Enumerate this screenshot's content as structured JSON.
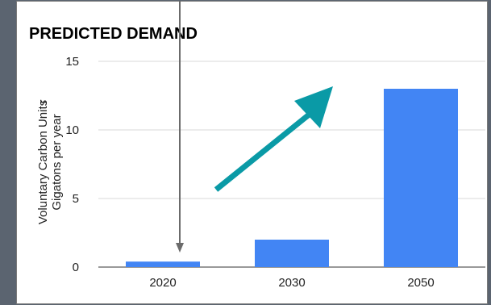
{
  "colors": {
    "bar": "#4285f4",
    "trend_arrow": "#0a9aa6",
    "pointer_arrow": "#6b6b6b",
    "grid": "#d9d9d9",
    "frame": "#7a7a7a"
  },
  "chart_data": {
    "type": "bar",
    "title": "PREDICTED DEMAND",
    "xlabel": "",
    "ylabel_line1": "Voluntary Carbon Units",
    "ylabel_line2": "Gigatons per year",
    "ylabel_fragment": "r",
    "categories": [
      "2020",
      "2030",
      "2050"
    ],
    "values": [
      0.4,
      2,
      13
    ],
    "ylim": [
      0,
      15
    ],
    "yticks": [
      "0",
      "5",
      "10",
      "15"
    ],
    "grid": true,
    "legend": "none"
  }
}
